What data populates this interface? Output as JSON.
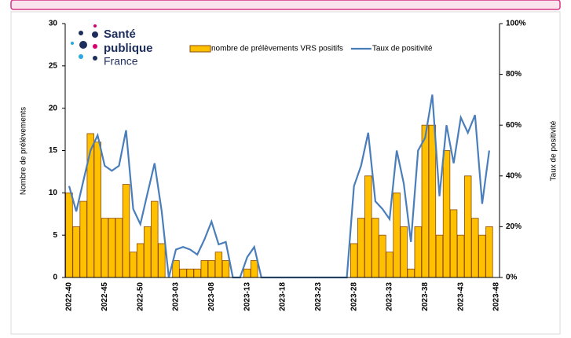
{
  "chart_data": {
    "type": "bar",
    "logo": {
      "line1": "Santé",
      "line2": "publique",
      "line3": "France"
    },
    "ylabel": "Nombre de prélèvements",
    "y2label": "Taux de positivité",
    "legend": "top",
    "categories": [
      "2022-40",
      null,
      null,
      null,
      null,
      "2022-45",
      null,
      null,
      null,
      null,
      "2022-50",
      null,
      null,
      null,
      null,
      "2023-03",
      null,
      null,
      null,
      null,
      "2023-08",
      null,
      null,
      null,
      null,
      "2023-13",
      null,
      null,
      null,
      null,
      "2023-18",
      null,
      null,
      null,
      null,
      "2023-23",
      null,
      null,
      null,
      null,
      "2023-28",
      null,
      null,
      null,
      null,
      "2023-33",
      null,
      null,
      null,
      null,
      "2023-38",
      null,
      null,
      null,
      null,
      "2023-43",
      null,
      null,
      null,
      null,
      "2023-48"
    ],
    "series": [
      {
        "name": "nombre de prélèvements VRS positifs",
        "type": "bar",
        "color": "#FFC000",
        "edge": "#8B4A0B",
        "values": [
          10,
          6,
          9,
          17,
          16,
          7,
          7,
          7,
          11,
          3,
          4,
          6,
          9,
          4,
          0,
          2,
          1,
          1,
          1,
          2,
          2,
          3,
          2,
          0,
          0,
          1,
          2,
          0,
          0,
          0,
          0,
          0,
          0,
          0,
          0,
          0,
          0,
          0,
          0,
          0,
          4,
          7,
          12,
          7,
          5,
          3,
          10,
          6,
          1,
          6,
          18,
          18,
          5,
          15,
          8,
          5,
          12,
          7,
          5,
          6,
          null
        ]
      },
      {
        "name": "Taux de positivité",
        "type": "line",
        "axis": "y2",
        "color": "#4A7EBB",
        "values": [
          36,
          26,
          38,
          50,
          56,
          44,
          42,
          44,
          58,
          27,
          21,
          33,
          45,
          26,
          0,
          11,
          12,
          11,
          9,
          15,
          22,
          13,
          14,
          0,
          0,
          8,
          12,
          0,
          0,
          0,
          0,
          0,
          0,
          0,
          0,
          0,
          0,
          0,
          0,
          0,
          36,
          44,
          57,
          30,
          27,
          23,
          50,
          37,
          14,
          50,
          55,
          72,
          32,
          60,
          45,
          63,
          57,
          64,
          29,
          50,
          null
        ]
      }
    ],
    "ylim": [
      0,
      30
    ],
    "yticks": [
      0,
      5,
      10,
      15,
      20,
      25,
      30
    ],
    "y2lim": [
      0,
      100
    ],
    "y2ticks": [
      {
        "value": 0,
        "label": "0%"
      },
      {
        "value": 20,
        "label": "20%"
      },
      {
        "value": 40,
        "label": "40%"
      },
      {
        "value": 60,
        "label": "60%"
      },
      {
        "value": 80,
        "label": "80%"
      },
      {
        "value": 100,
        "label": "100%"
      }
    ]
  }
}
